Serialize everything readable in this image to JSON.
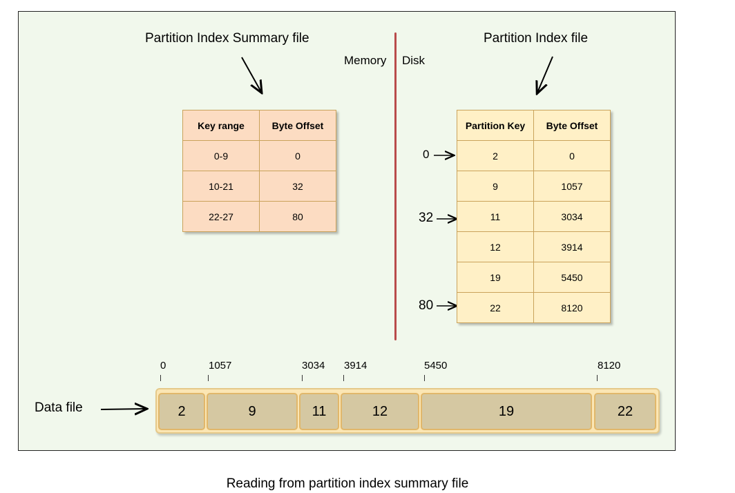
{
  "labels": {
    "summary_title": "Partition Index Summary file",
    "index_title": "Partition Index file",
    "memory": "Memory",
    "disk": "Disk",
    "data_file": "Data file",
    "caption": "Reading from partition index summary file"
  },
  "summary_table": {
    "headers": [
      "Key range",
      "Byte Offset"
    ],
    "rows": [
      [
        "0-9",
        "0"
      ],
      [
        "10-21",
        "32"
      ],
      [
        "22-27",
        "80"
      ]
    ]
  },
  "index_table": {
    "headers": [
      "Partition Key",
      "Byte Offset"
    ],
    "rows": [
      [
        "2",
        "0"
      ],
      [
        "9",
        "1057"
      ],
      [
        "11",
        "3034"
      ],
      [
        "12",
        "3914"
      ],
      [
        "19",
        "5450"
      ],
      [
        "22",
        "8120"
      ]
    ]
  },
  "pointers": [
    "0",
    "32",
    "80"
  ],
  "data_segments": [
    {
      "key": "2",
      "offset": "0"
    },
    {
      "key": "9",
      "offset": "1057"
    },
    {
      "key": "11",
      "offset": "3034"
    },
    {
      "key": "12",
      "offset": "3914"
    },
    {
      "key": "19",
      "offset": "5450"
    },
    {
      "key": "22",
      "offset": "8120"
    }
  ],
  "colors": {
    "summary_fill": "#fcdcc2",
    "index_fill": "#fff0c6",
    "divider": "#b94b4b",
    "segment_fill": "#d5c8a2",
    "background": "#f1f8ec"
  }
}
